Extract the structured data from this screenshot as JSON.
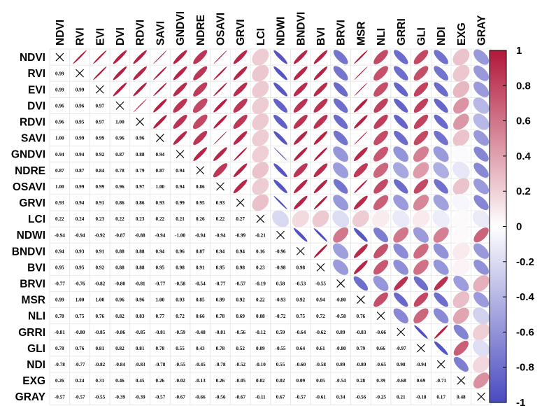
{
  "chart_data": {
    "type": "heatmap",
    "style": "mixed correlation matrix: numbers in lower triangle, ellipses in upper triangle, crosses on diagonal",
    "variables": [
      "NDVI",
      "RVI",
      "EVI",
      "DVI",
      "RDVI",
      "SAVI",
      "GNDVI",
      "NDRE",
      "OSAVI",
      "GRVI",
      "LCI",
      "NDWI",
      "BNDVI",
      "BVI",
      "BRVI",
      "MSR",
      "NLI",
      "GRRI",
      "GLI",
      "NDI",
      "EXG",
      "GRAY"
    ],
    "lower_values": [
      [],
      [
        0.99
      ],
      [
        0.99,
        0.99
      ],
      [
        0.96,
        0.96,
        0.97
      ],
      [
        0.96,
        0.95,
        0.97,
        1.0
      ],
      [
        1.0,
        0.99,
        0.99,
        0.96,
        0.96
      ],
      [
        0.94,
        0.94,
        0.92,
        0.87,
        0.88,
        0.94
      ],
      [
        0.87,
        0.87,
        0.84,
        0.78,
        0.79,
        0.87,
        0.94
      ],
      [
        1.0,
        0.99,
        0.99,
        0.96,
        0.97,
        1.0,
        0.94,
        0.86
      ],
      [
        0.93,
        0.94,
        0.91,
        0.86,
        0.86,
        0.93,
        0.99,
        0.95,
        0.93
      ],
      [
        0.22,
        0.24,
        0.23,
        0.22,
        0.23,
        0.22,
        0.21,
        0.26,
        0.22,
        0.27
      ],
      [
        -0.94,
        -0.94,
        -0.92,
        -0.87,
        -0.88,
        -0.94,
        -1.0,
        -0.94,
        -0.94,
        -0.99,
        -0.21
      ],
      [
        0.94,
        0.93,
        0.91,
        0.88,
        0.88,
        0.94,
        0.96,
        0.87,
        0.94,
        0.94,
        0.16,
        -0.96
      ],
      [
        0.95,
        0.95,
        0.92,
        0.88,
        0.88,
        0.95,
        0.98,
        0.91,
        0.95,
        0.98,
        0.23,
        -0.98,
        0.98
      ],
      [
        -0.77,
        -0.76,
        -0.82,
        -0.8,
        -0.81,
        -0.77,
        -0.58,
        -0.54,
        -0.77,
        -0.57,
        -0.19,
        0.58,
        -0.53,
        -0.55
      ],
      [
        0.99,
        1.0,
        1.0,
        0.96,
        0.96,
        1.0,
        0.93,
        0.85,
        0.99,
        0.92,
        0.22,
        -0.93,
        0.92,
        0.94,
        -0.8
      ],
      [
        0.78,
        0.75,
        0.76,
        0.82,
        0.83,
        0.77,
        0.72,
        0.66,
        0.78,
        0.69,
        0.08,
        -0.72,
        0.75,
        0.72,
        -0.58,
        0.76
      ],
      [
        -0.81,
        -0.8,
        -0.85,
        -0.86,
        -0.85,
        -0.81,
        -0.59,
        -0.48,
        -0.81,
        -0.56,
        -0.12,
        0.59,
        -0.64,
        -0.62,
        0.89,
        -0.83,
        -0.66
      ],
      [
        0.78,
        0.76,
        0.81,
        0.82,
        0.81,
        0.78,
        0.55,
        0.43,
        0.78,
        0.52,
        0.09,
        -0.55,
        0.64,
        0.61,
        -0.8,
        0.79,
        0.66,
        -0.97
      ],
      [
        -0.78,
        -0.77,
        -0.82,
        -0.84,
        -0.83,
        -0.78,
        -0.55,
        -0.45,
        -0.78,
        -0.52,
        -0.1,
        0.55,
        -0.6,
        -0.58,
        0.89,
        -0.8,
        -0.65,
        0.98,
        -0.94
      ],
      [
        0.26,
        0.24,
        0.31,
        0.46,
        0.45,
        0.26,
        -0.02,
        -0.13,
        0.26,
        -0.05,
        0.02,
        0.02,
        0.09,
        0.05,
        -0.54,
        0.28,
        0.39,
        -0.68,
        0.69,
        -0.71
      ],
      [
        -0.57,
        -0.57,
        -0.55,
        -0.39,
        -0.39,
        -0.57,
        -0.67,
        -0.66,
        -0.56,
        -0.67,
        -0.11,
        0.67,
        -0.57,
        -0.61,
        0.34,
        -0.56,
        -0.25,
        0.21,
        -0.18,
        0.17,
        0.48
      ]
    ],
    "colorbar": {
      "range": [
        -1,
        1
      ],
      "tick_labels": [
        "1",
        "0.8",
        "0.6",
        "0.4",
        "0.2",
        "0",
        "-0.2",
        "-0.4",
        "-0.6",
        "-0.8",
        "-1"
      ],
      "positive_color": "#b2173a",
      "neutral_color": "#ffffff",
      "negative_color": "#4a4ac0"
    }
  }
}
